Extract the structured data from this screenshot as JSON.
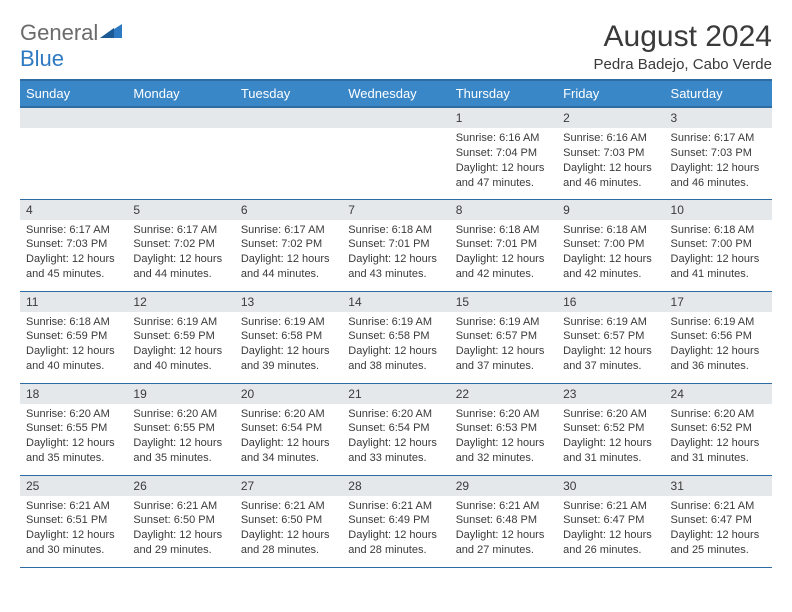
{
  "logo": {
    "general": "General",
    "blue": "Blue"
  },
  "title": "August 2024",
  "location": "Pedra Badejo, Cabo Verde",
  "weekdays": [
    "Sunday",
    "Monday",
    "Tuesday",
    "Wednesday",
    "Thursday",
    "Friday",
    "Saturday"
  ],
  "colors": {
    "header_bg": "#3a87c8",
    "header_border": "#2e6da4",
    "daynum_bg": "#e5e8eb",
    "text": "#3a3a3a",
    "logo_gray": "#6b6b6b",
    "logo_blue": "#2e7ac2"
  },
  "rows": [
    [
      {
        "day": "",
        "sunrise": "",
        "sunset": "",
        "daylight": ""
      },
      {
        "day": "",
        "sunrise": "",
        "sunset": "",
        "daylight": ""
      },
      {
        "day": "",
        "sunrise": "",
        "sunset": "",
        "daylight": ""
      },
      {
        "day": "",
        "sunrise": "",
        "sunset": "",
        "daylight": ""
      },
      {
        "day": "1",
        "sunrise": "Sunrise: 6:16 AM",
        "sunset": "Sunset: 7:04 PM",
        "daylight": "Daylight: 12 hours and 47 minutes."
      },
      {
        "day": "2",
        "sunrise": "Sunrise: 6:16 AM",
        "sunset": "Sunset: 7:03 PM",
        "daylight": "Daylight: 12 hours and 46 minutes."
      },
      {
        "day": "3",
        "sunrise": "Sunrise: 6:17 AM",
        "sunset": "Sunset: 7:03 PM",
        "daylight": "Daylight: 12 hours and 46 minutes."
      }
    ],
    [
      {
        "day": "4",
        "sunrise": "Sunrise: 6:17 AM",
        "sunset": "Sunset: 7:03 PM",
        "daylight": "Daylight: 12 hours and 45 minutes."
      },
      {
        "day": "5",
        "sunrise": "Sunrise: 6:17 AM",
        "sunset": "Sunset: 7:02 PM",
        "daylight": "Daylight: 12 hours and 44 minutes."
      },
      {
        "day": "6",
        "sunrise": "Sunrise: 6:17 AM",
        "sunset": "Sunset: 7:02 PM",
        "daylight": "Daylight: 12 hours and 44 minutes."
      },
      {
        "day": "7",
        "sunrise": "Sunrise: 6:18 AM",
        "sunset": "Sunset: 7:01 PM",
        "daylight": "Daylight: 12 hours and 43 minutes."
      },
      {
        "day": "8",
        "sunrise": "Sunrise: 6:18 AM",
        "sunset": "Sunset: 7:01 PM",
        "daylight": "Daylight: 12 hours and 42 minutes."
      },
      {
        "day": "9",
        "sunrise": "Sunrise: 6:18 AM",
        "sunset": "Sunset: 7:00 PM",
        "daylight": "Daylight: 12 hours and 42 minutes."
      },
      {
        "day": "10",
        "sunrise": "Sunrise: 6:18 AM",
        "sunset": "Sunset: 7:00 PM",
        "daylight": "Daylight: 12 hours and 41 minutes."
      }
    ],
    [
      {
        "day": "11",
        "sunrise": "Sunrise: 6:18 AM",
        "sunset": "Sunset: 6:59 PM",
        "daylight": "Daylight: 12 hours and 40 minutes."
      },
      {
        "day": "12",
        "sunrise": "Sunrise: 6:19 AM",
        "sunset": "Sunset: 6:59 PM",
        "daylight": "Daylight: 12 hours and 40 minutes."
      },
      {
        "day": "13",
        "sunrise": "Sunrise: 6:19 AM",
        "sunset": "Sunset: 6:58 PM",
        "daylight": "Daylight: 12 hours and 39 minutes."
      },
      {
        "day": "14",
        "sunrise": "Sunrise: 6:19 AM",
        "sunset": "Sunset: 6:58 PM",
        "daylight": "Daylight: 12 hours and 38 minutes."
      },
      {
        "day": "15",
        "sunrise": "Sunrise: 6:19 AM",
        "sunset": "Sunset: 6:57 PM",
        "daylight": "Daylight: 12 hours and 37 minutes."
      },
      {
        "day": "16",
        "sunrise": "Sunrise: 6:19 AM",
        "sunset": "Sunset: 6:57 PM",
        "daylight": "Daylight: 12 hours and 37 minutes."
      },
      {
        "day": "17",
        "sunrise": "Sunrise: 6:19 AM",
        "sunset": "Sunset: 6:56 PM",
        "daylight": "Daylight: 12 hours and 36 minutes."
      }
    ],
    [
      {
        "day": "18",
        "sunrise": "Sunrise: 6:20 AM",
        "sunset": "Sunset: 6:55 PM",
        "daylight": "Daylight: 12 hours and 35 minutes."
      },
      {
        "day": "19",
        "sunrise": "Sunrise: 6:20 AM",
        "sunset": "Sunset: 6:55 PM",
        "daylight": "Daylight: 12 hours and 35 minutes."
      },
      {
        "day": "20",
        "sunrise": "Sunrise: 6:20 AM",
        "sunset": "Sunset: 6:54 PM",
        "daylight": "Daylight: 12 hours and 34 minutes."
      },
      {
        "day": "21",
        "sunrise": "Sunrise: 6:20 AM",
        "sunset": "Sunset: 6:54 PM",
        "daylight": "Daylight: 12 hours and 33 minutes."
      },
      {
        "day": "22",
        "sunrise": "Sunrise: 6:20 AM",
        "sunset": "Sunset: 6:53 PM",
        "daylight": "Daylight: 12 hours and 32 minutes."
      },
      {
        "day": "23",
        "sunrise": "Sunrise: 6:20 AM",
        "sunset": "Sunset: 6:52 PM",
        "daylight": "Daylight: 12 hours and 31 minutes."
      },
      {
        "day": "24",
        "sunrise": "Sunrise: 6:20 AM",
        "sunset": "Sunset: 6:52 PM",
        "daylight": "Daylight: 12 hours and 31 minutes."
      }
    ],
    [
      {
        "day": "25",
        "sunrise": "Sunrise: 6:21 AM",
        "sunset": "Sunset: 6:51 PM",
        "daylight": "Daylight: 12 hours and 30 minutes."
      },
      {
        "day": "26",
        "sunrise": "Sunrise: 6:21 AM",
        "sunset": "Sunset: 6:50 PM",
        "daylight": "Daylight: 12 hours and 29 minutes."
      },
      {
        "day": "27",
        "sunrise": "Sunrise: 6:21 AM",
        "sunset": "Sunset: 6:50 PM",
        "daylight": "Daylight: 12 hours and 28 minutes."
      },
      {
        "day": "28",
        "sunrise": "Sunrise: 6:21 AM",
        "sunset": "Sunset: 6:49 PM",
        "daylight": "Daylight: 12 hours and 28 minutes."
      },
      {
        "day": "29",
        "sunrise": "Sunrise: 6:21 AM",
        "sunset": "Sunset: 6:48 PM",
        "daylight": "Daylight: 12 hours and 27 minutes."
      },
      {
        "day": "30",
        "sunrise": "Sunrise: 6:21 AM",
        "sunset": "Sunset: 6:47 PM",
        "daylight": "Daylight: 12 hours and 26 minutes."
      },
      {
        "day": "31",
        "sunrise": "Sunrise: 6:21 AM",
        "sunset": "Sunset: 6:47 PM",
        "daylight": "Daylight: 12 hours and 25 minutes."
      }
    ]
  ]
}
